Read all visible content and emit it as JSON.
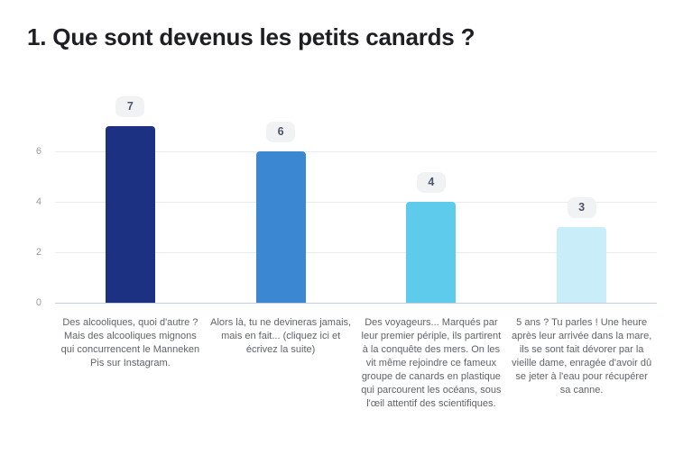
{
  "title": "1. Que sont devenus les petits canards ?",
  "chart_data": {
    "type": "bar",
    "title": "1. Que sont devenus les petits canards ?",
    "categories": [
      "Des alcooliques, quoi d'autre ? Mais des alcooliques mignons qui concurrencent le Manneken Pis sur Instagram.",
      "Alors là, tu ne devineras jamais, mais en fait... (cliquez ici et écrivez la suite)",
      "Des voyageurs... Marqués par leur premier périple, ils partirent à la conquête des mers. On les vit même rejoindre ce fameux groupe de canards en plastique qui parcourent les océans, sous l'œil attentif des scientifiques.",
      "5 ans ? Tu parles ! Une heure après leur arrivée dans la mare, ils se sont fait dévorer par la vieille dame, enragée d'avoir dû se jeter à l'eau pour récupérer sa canne."
    ],
    "values": [
      7,
      6,
      4,
      3
    ],
    "value_labels": [
      "7",
      "6",
      "4",
      "3"
    ],
    "bar_colors": [
      "#1c3181",
      "#3c87d2",
      "#5fcbec",
      "#c9eef9"
    ],
    "yticks": [
      0,
      2,
      4,
      6
    ],
    "ylim": [
      0,
      8.4
    ],
    "xlabel": "",
    "ylabel": "",
    "grid": "horizontal",
    "legend": "none"
  },
  "colors": {
    "background": "#ffffff",
    "title_text": "#1d1f23",
    "axis_label": "#9aa0a8",
    "gridline": "#e9eaee",
    "zero_line": "#c2cfe6",
    "badge_bg": "#f1f2f3",
    "badge_text": "#4b566b",
    "category_text": "#5f6368"
  }
}
